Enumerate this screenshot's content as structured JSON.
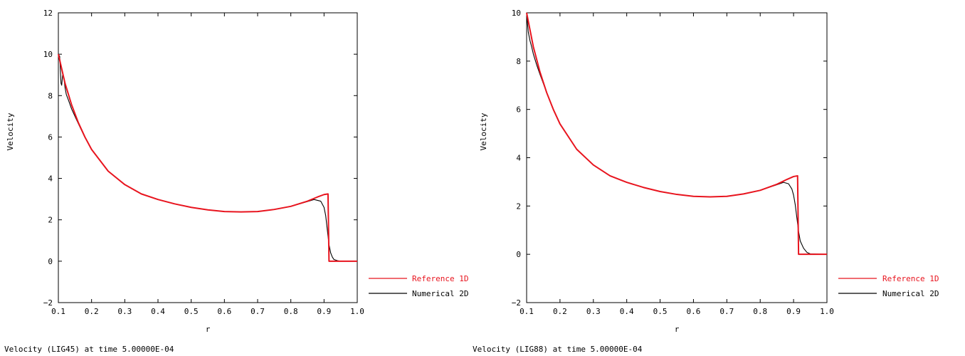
{
  "chart_data": [
    {
      "type": "line",
      "title": "",
      "caption": "Velocity (LIG45)  at time 5.00000E-04",
      "xlabel": "r",
      "ylabel": "Velocity",
      "xlim": [
        0.1,
        1.0
      ],
      "ylim": [
        -2,
        12
      ],
      "xticks": [
        "0.1",
        "0.2",
        "0.3",
        "0.4",
        "0.5",
        "0.6",
        "0.7",
        "0.8",
        "0.9",
        "1.0"
      ],
      "yticks": [
        "−2",
        "0",
        "2",
        "4",
        "6",
        "8",
        "10",
        "12"
      ],
      "legend": [
        "Reference 1D",
        "Numerical 2D"
      ],
      "legend_position": "outside-bottom-right",
      "colors": {
        "reference": "#e8141e",
        "numerical": "#000000"
      },
      "series": [
        {
          "name": "Reference 1D",
          "x": [
            0.1,
            0.12,
            0.14,
            0.16,
            0.18,
            0.2,
            0.25,
            0.3,
            0.35,
            0.4,
            0.45,
            0.5,
            0.55,
            0.6,
            0.65,
            0.7,
            0.75,
            0.8,
            0.85,
            0.88,
            0.9,
            0.912,
            0.915,
            0.95,
            1.0
          ],
          "y": [
            10.0,
            8.6,
            7.55,
            6.7,
            6.0,
            5.4,
            4.35,
            3.7,
            3.25,
            2.98,
            2.77,
            2.6,
            2.48,
            2.4,
            2.38,
            2.4,
            2.5,
            2.65,
            2.9,
            3.1,
            3.22,
            3.25,
            0.0,
            0.0,
            0.0
          ]
        },
        {
          "name": "Numerical 2D",
          "x": [
            0.1,
            0.104,
            0.108,
            0.11,
            0.113,
            0.117,
            0.12,
            0.124,
            0.13,
            0.14,
            0.16,
            0.18,
            0.2,
            0.25,
            0.3,
            0.35,
            0.4,
            0.45,
            0.5,
            0.55,
            0.6,
            0.65,
            0.7,
            0.75,
            0.8,
            0.85,
            0.87,
            0.89,
            0.9,
            0.905,
            0.91,
            0.915,
            0.92,
            0.925,
            0.93,
            0.94,
            0.95,
            1.0
          ],
          "y": [
            10.0,
            9.9,
            8.6,
            8.5,
            9.0,
            8.85,
            8.4,
            8.05,
            7.8,
            7.35,
            6.65,
            5.98,
            5.4,
            4.35,
            3.7,
            3.25,
            2.98,
            2.77,
            2.6,
            2.48,
            2.4,
            2.38,
            2.4,
            2.5,
            2.65,
            2.88,
            2.98,
            2.9,
            2.6,
            2.2,
            1.5,
            0.8,
            0.4,
            0.2,
            0.08,
            0.03,
            0.0,
            0.0
          ]
        }
      ]
    },
    {
      "type": "line",
      "title": "",
      "caption": "Velocity (LIG88)  at time 5.00000E-04",
      "xlabel": "r",
      "ylabel": "Velocity",
      "xlim": [
        0.1,
        1.0
      ],
      "ylim": [
        -2,
        10
      ],
      "xticks": [
        "0.1",
        "0.2",
        "0.3",
        "0.4",
        "0.5",
        "0.6",
        "0.7",
        "0.8",
        "0.9",
        "1.0"
      ],
      "yticks": [
        "−2",
        "0",
        "2",
        "4",
        "6",
        "8",
        "10"
      ],
      "legend": [
        "Reference 1D",
        "Numerical 2D"
      ],
      "legend_position": "outside-bottom-right",
      "colors": {
        "reference": "#e8141e",
        "numerical": "#000000"
      },
      "series": [
        {
          "name": "Reference 1D",
          "x": [
            0.1,
            0.12,
            0.14,
            0.16,
            0.18,
            0.2,
            0.25,
            0.3,
            0.35,
            0.4,
            0.45,
            0.5,
            0.55,
            0.6,
            0.65,
            0.7,
            0.75,
            0.8,
            0.85,
            0.88,
            0.9,
            0.912,
            0.915,
            0.95,
            1.0
          ],
          "y": [
            10.0,
            8.6,
            7.55,
            6.7,
            6.0,
            5.4,
            4.35,
            3.7,
            3.25,
            2.98,
            2.77,
            2.6,
            2.48,
            2.4,
            2.38,
            2.4,
            2.5,
            2.65,
            2.9,
            3.1,
            3.22,
            3.25,
            0.0,
            0.0,
            0.0
          ]
        },
        {
          "name": "Numerical 2D",
          "x": [
            0.1,
            0.105,
            0.11,
            0.115,
            0.12,
            0.13,
            0.14,
            0.16,
            0.18,
            0.2,
            0.25,
            0.3,
            0.35,
            0.4,
            0.45,
            0.5,
            0.55,
            0.6,
            0.65,
            0.7,
            0.75,
            0.8,
            0.85,
            0.87,
            0.885,
            0.895,
            0.9,
            0.905,
            0.91,
            0.915,
            0.92,
            0.93,
            0.94,
            0.95,
            1.0
          ],
          "y": [
            9.95,
            9.2,
            8.85,
            8.6,
            8.3,
            7.85,
            7.45,
            6.7,
            6.0,
            5.4,
            4.35,
            3.7,
            3.25,
            2.98,
            2.77,
            2.6,
            2.48,
            2.4,
            2.38,
            2.4,
            2.5,
            2.65,
            2.88,
            2.98,
            2.92,
            2.7,
            2.45,
            2.05,
            1.5,
            0.95,
            0.55,
            0.25,
            0.08,
            0.02,
            0.0
          ]
        }
      ]
    }
  ]
}
